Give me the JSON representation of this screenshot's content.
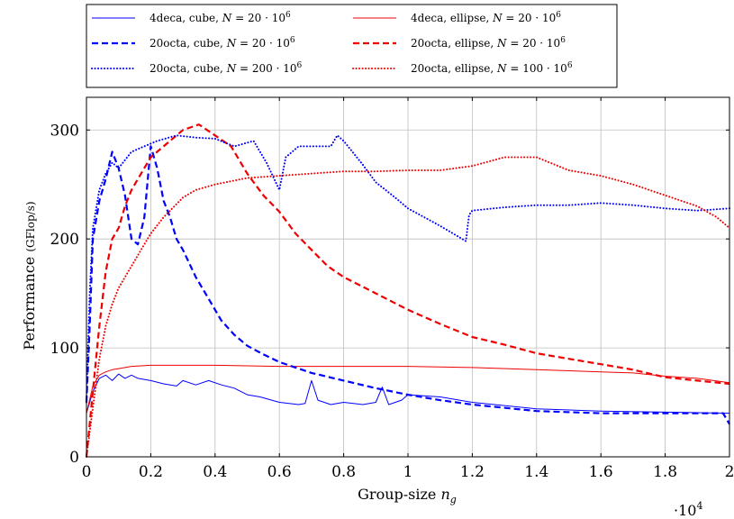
{
  "chart_data": {
    "type": "line",
    "title": "",
    "xlabel": "Group-size",
    "xlabel_sym": "n",
    "xlabel_sub": "g",
    "ylabel": "Performance",
    "ylabel_unit": "(GFlop/s)",
    "x_scale_base": "·10",
    "x_scale_exp": "4",
    "xlim": [
      0,
      2
    ],
    "ylim": [
      0,
      330
    ],
    "xticks": [
      "0",
      "0.2",
      "0.4",
      "0.6",
      "0.8",
      "1",
      "1.2",
      "1.4",
      "1.6",
      "1.8",
      "2"
    ],
    "xtick_values": [
      0,
      0.2,
      0.4,
      0.6,
      0.8,
      1.0,
      1.2,
      1.4,
      1.6,
      1.8,
      2.0
    ],
    "yticks": [
      "0",
      "100",
      "200",
      "300"
    ],
    "ytick_values": [
      0,
      100,
      200,
      300
    ],
    "grid": true,
    "legend_position": "top",
    "series": [
      {
        "name": "4deca, cube, N = 20 · 10",
        "name_exp": "6",
        "color": "#0000ff",
        "style": "solid",
        "x": [
          0,
          0.02,
          0.04,
          0.06,
          0.08,
          0.1,
          0.12,
          0.14,
          0.16,
          0.2,
          0.24,
          0.28,
          0.3,
          0.34,
          0.38,
          0.42,
          0.46,
          0.5,
          0.54,
          0.6,
          0.66,
          0.68,
          0.7,
          0.72,
          0.76,
          0.8,
          0.86,
          0.9,
          0.92,
          0.94,
          0.98,
          1.0,
          1.1,
          1.2,
          1.4,
          1.6,
          1.8,
          2.0
        ],
        "y": [
          40,
          60,
          72,
          75,
          70,
          76,
          72,
          75,
          72,
          70,
          67,
          65,
          70,
          66,
          70,
          66,
          63,
          57,
          55,
          50,
          48,
          49,
          70,
          52,
          48,
          50,
          48,
          50,
          64,
          48,
          52,
          57,
          55,
          50,
          44,
          42,
          41,
          40
        ]
      },
      {
        "name": "4deca, ellipse, N = 20 · 10",
        "name_exp": "6",
        "color": "#ee0000",
        "style": "solid",
        "x": [
          0,
          0.02,
          0.04,
          0.06,
          0.08,
          0.1,
          0.14,
          0.2,
          0.4,
          0.6,
          0.8,
          1.0,
          1.2,
          1.4,
          1.6,
          1.7,
          1.8,
          1.9,
          2.0
        ],
        "y": [
          40,
          65,
          75,
          78,
          80,
          81,
          83,
          84,
          84,
          83,
          83,
          83,
          82,
          80,
          78,
          77,
          74,
          72,
          68
        ]
      },
      {
        "name": "20octa, cube, N = 20 · 10",
        "name_exp": "6",
        "color": "#0000ff",
        "style": "dashed",
        "x": [
          0,
          0.01,
          0.02,
          0.04,
          0.06,
          0.08,
          0.1,
          0.12,
          0.14,
          0.16,
          0.18,
          0.2,
          0.22,
          0.24,
          0.26,
          0.28,
          0.3,
          0.34,
          0.38,
          0.42,
          0.46,
          0.5,
          0.55,
          0.6,
          0.65,
          0.7,
          0.8,
          0.9,
          1.0,
          1.1,
          1.2,
          1.4,
          1.6,
          1.8,
          1.98,
          2.0
        ],
        "y": [
          50,
          120,
          200,
          235,
          255,
          280,
          265,
          240,
          200,
          195,
          220,
          285,
          265,
          235,
          220,
          200,
          190,
          165,
          145,
          125,
          112,
          102,
          94,
          87,
          82,
          77,
          70,
          63,
          57,
          52,
          48,
          42,
          40,
          40,
          40,
          30
        ]
      },
      {
        "name": "20octa, ellipse, N = 20 · 10",
        "name_exp": "6",
        "color": "#ee0000",
        "style": "dashed",
        "x": [
          0,
          0.02,
          0.04,
          0.06,
          0.08,
          0.1,
          0.12,
          0.14,
          0.16,
          0.2,
          0.24,
          0.28,
          0.3,
          0.35,
          0.4,
          0.45,
          0.5,
          0.55,
          0.6,
          0.65,
          0.7,
          0.75,
          0.8,
          0.9,
          1.0,
          1.1,
          1.2,
          1.3,
          1.4,
          1.5,
          1.6,
          1.7,
          1.8,
          1.9,
          2.0
        ],
        "y": [
          0,
          60,
          120,
          170,
          200,
          210,
          230,
          245,
          255,
          275,
          285,
          295,
          300,
          305,
          295,
          285,
          260,
          240,
          225,
          205,
          190,
          175,
          165,
          150,
          135,
          122,
          110,
          103,
          95,
          90,
          85,
          80,
          73,
          70,
          67
        ]
      },
      {
        "name": "20octa, cube, N = 200 · 10",
        "name_exp": "6",
        "color": "#0000ff",
        "style": "dotted",
        "x": [
          0,
          0.01,
          0.02,
          0.04,
          0.06,
          0.08,
          0.1,
          0.14,
          0.18,
          0.22,
          0.28,
          0.34,
          0.4,
          0.46,
          0.52,
          0.56,
          0.6,
          0.62,
          0.66,
          0.7,
          0.76,
          0.78,
          0.8,
          0.86,
          0.9,
          0.96,
          1.0,
          1.1,
          1.18,
          1.19,
          1.2,
          1.3,
          1.4,
          1.5,
          1.6,
          1.7,
          1.8,
          1.9,
          2.0
        ],
        "y": [
          50,
          150,
          210,
          245,
          260,
          270,
          265,
          280,
          285,
          290,
          295,
          293,
          292,
          285,
          290,
          270,
          245,
          275,
          285,
          285,
          285,
          295,
          290,
          268,
          252,
          238,
          228,
          212,
          198,
          222,
          226,
          229,
          231,
          231,
          233,
          231,
          228,
          226,
          228
        ]
      },
      {
        "name": "20octa, ellipse, N = 100 · 10",
        "name_exp": "6",
        "color": "#ee0000",
        "style": "dotted",
        "x": [
          0,
          0.02,
          0.04,
          0.06,
          0.08,
          0.1,
          0.12,
          0.14,
          0.16,
          0.2,
          0.24,
          0.28,
          0.3,
          0.34,
          0.4,
          0.5,
          0.6,
          0.7,
          0.8,
          0.9,
          1.0,
          1.1,
          1.2,
          1.3,
          1.4,
          1.5,
          1.6,
          1.7,
          1.8,
          1.9,
          1.96,
          2.0
        ],
        "y": [
          0,
          45,
          90,
          120,
          140,
          155,
          165,
          175,
          185,
          205,
          220,
          232,
          238,
          245,
          250,
          256,
          258,
          260,
          262,
          262,
          263,
          263,
          267,
          275,
          275,
          263,
          258,
          250,
          240,
          230,
          220,
          210
        ]
      }
    ]
  }
}
